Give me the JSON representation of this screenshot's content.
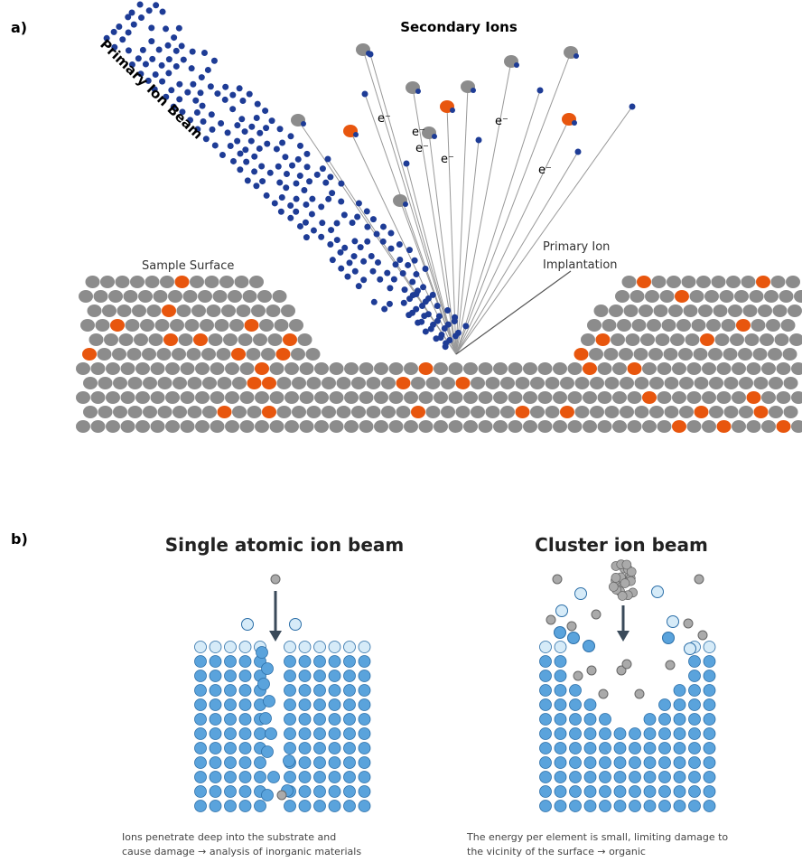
{
  "panel_a": {
    "label": "a)",
    "title": "Secondary Ions",
    "beam_label": "Primary Ion Beam",
    "surface_label": "Sample Surface",
    "implantation_label": [
      "Primary Ion",
      "Implantation"
    ],
    "electron_labels": [
      "e⁻",
      "e⁻",
      "e⁻",
      "e⁻",
      "e⁻",
      "e⁻"
    ]
  },
  "panel_b": {
    "label": "b)",
    "left": {
      "title": "Single atomic ion beam",
      "caption": [
        "Ions penetrate deep into the substrate and",
        "cause damage → analysis of inorganic materials"
      ]
    },
    "right": {
      "title": "Cluster ion beam",
      "caption": [
        "The energy per element is small, limiting damage to",
        "the vicinity of the surface → organic"
      ]
    }
  }
}
